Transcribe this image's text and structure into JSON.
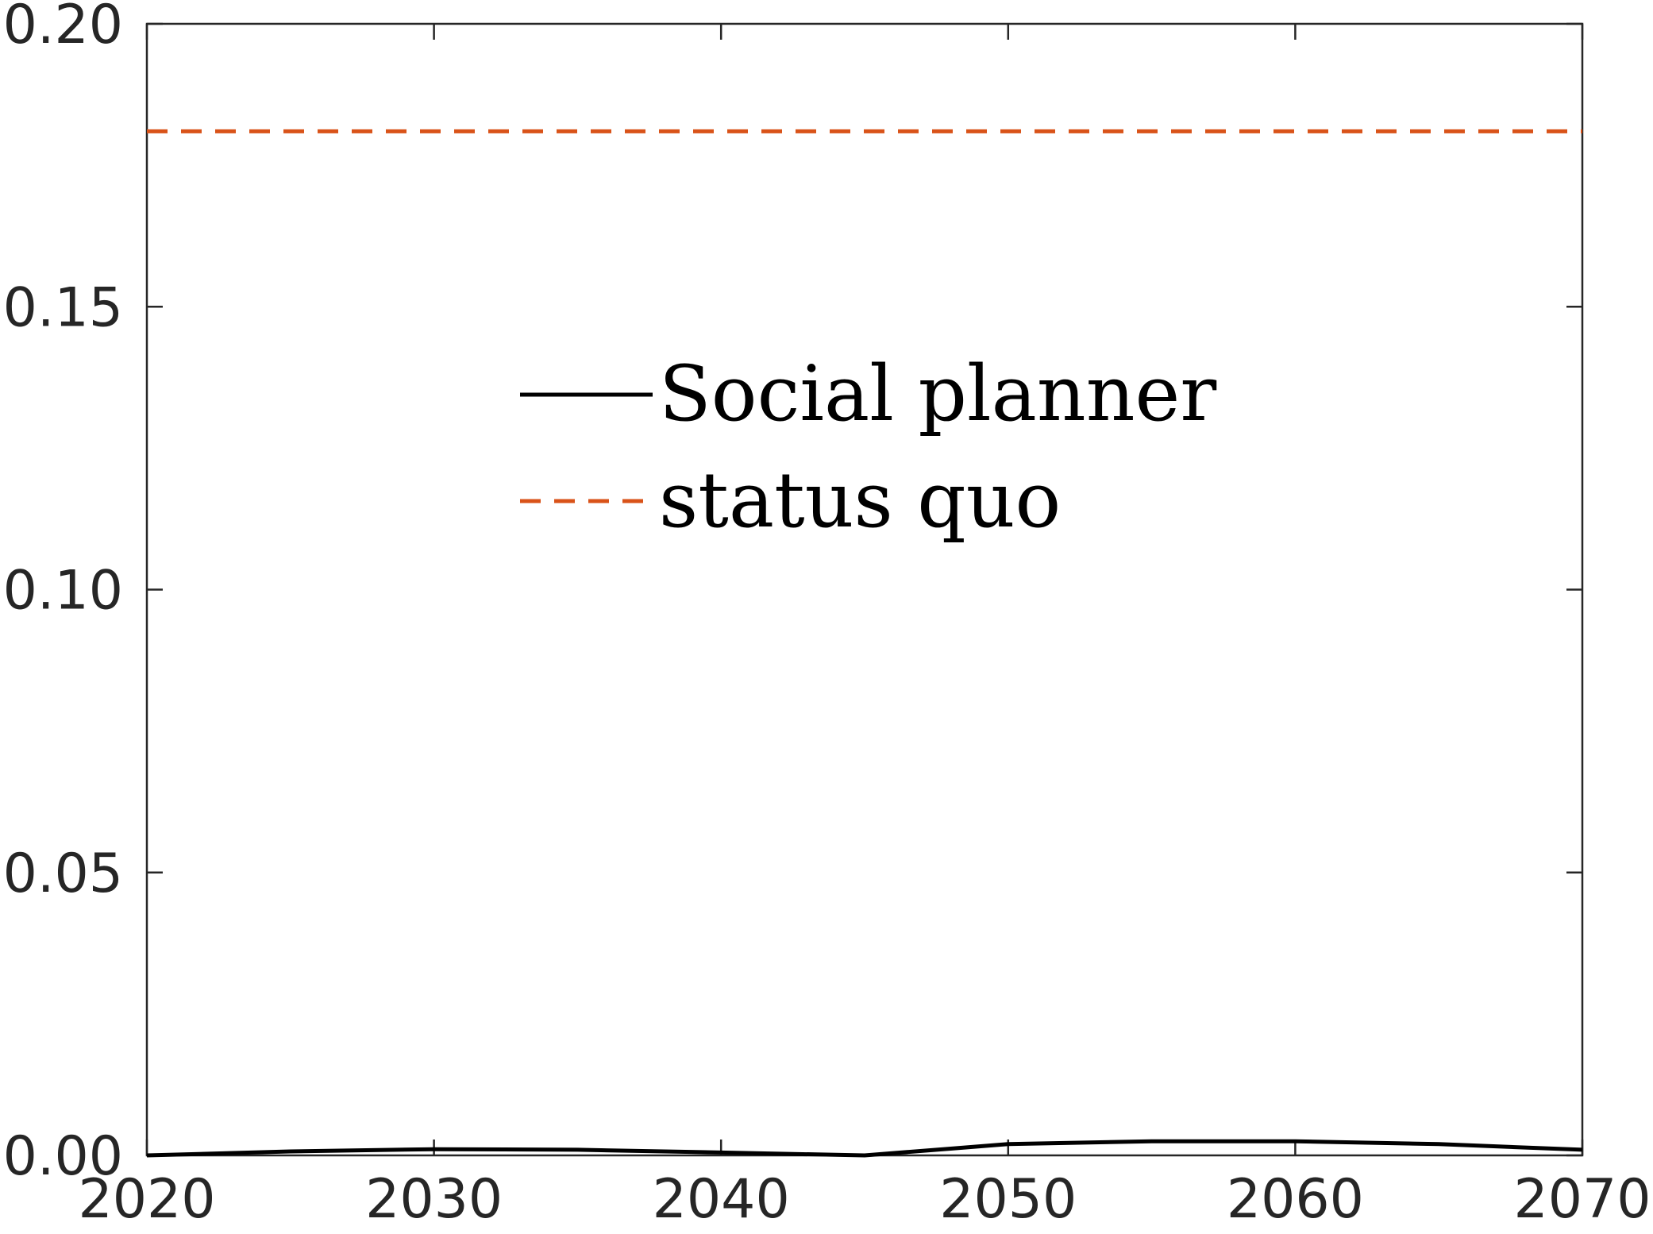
{
  "chart_data": {
    "type": "line",
    "title": "",
    "xlabel": "",
    "ylabel": "",
    "xlim": [
      2020,
      2070
    ],
    "ylim": [
      0,
      0.2
    ],
    "grid": false,
    "legend_position": "center-left-top",
    "x_ticks": [
      2020,
      2030,
      2040,
      2050,
      2060,
      2070
    ],
    "x_tick_labels": [
      "2020",
      "2030",
      "2040",
      "2050",
      "2060",
      "2070"
    ],
    "y_ticks": [
      0,
      0.05,
      0.1,
      0.15,
      0.2
    ],
    "y_tick_labels": [
      "0.00",
      "0.05",
      "0.10",
      "0.15",
      "0.20"
    ],
    "series": [
      {
        "name": "Social planner",
        "color": "#000000",
        "style": "solid",
        "x": [
          2020,
          2025,
          2030,
          2035,
          2040,
          2045,
          2048,
          2050,
          2055,
          2060,
          2065,
          2070
        ],
        "y": [
          0.0,
          0.0007,
          0.0011,
          0.001,
          0.0005,
          0.0,
          0.0012,
          0.002,
          0.0025,
          0.0025,
          0.002,
          0.001
        ]
      },
      {
        "name": "status quo",
        "color": "#D95319",
        "style": "dashed",
        "x": [
          2020,
          2070
        ],
        "y": [
          0.181,
          0.181
        ]
      }
    ]
  }
}
